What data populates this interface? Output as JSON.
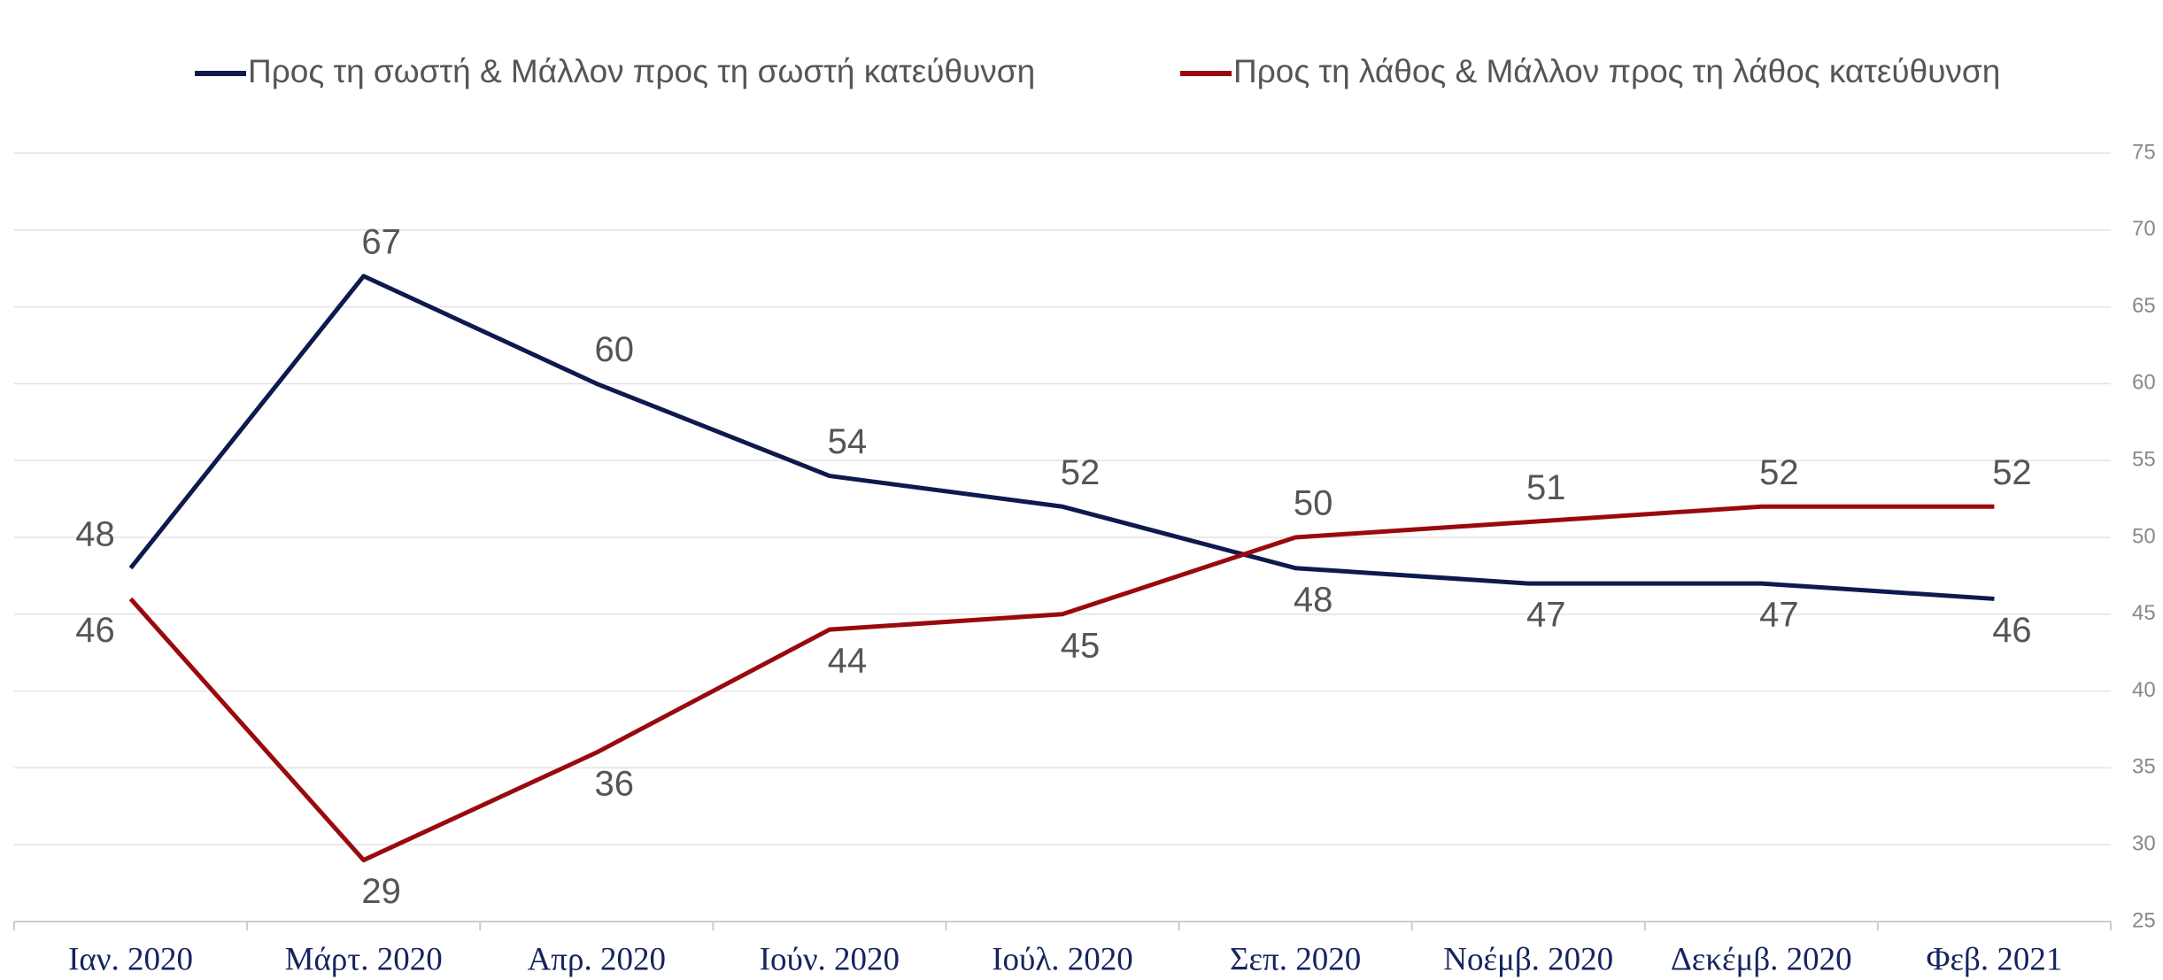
{
  "chart_data": {
    "type": "line",
    "categories": [
      "Ιαν. 2020",
      "Μάρτ. 2020",
      "Απρ. 2020",
      "Ιούν. 2020",
      "Ιούλ. 2020",
      "Σεπ. 2020",
      "Νοέμβ. 2020",
      "Δεκέμβ. 2020",
      "Φεβ. 2021"
    ],
    "series": [
      {
        "name": "Προς τη σωστή & Μάλλον προς τη σωστή κατεύθυνση",
        "color": "#0e1a4e",
        "values": [
          48,
          67,
          60,
          54,
          52,
          48,
          47,
          47,
          46
        ]
      },
      {
        "name": "Προς τη λάθος & Μάλλον προς τη λάθος κατεύθυνση",
        "color": "#990a0c",
        "values": [
          46,
          29,
          36,
          44,
          45,
          50,
          51,
          52,
          52
        ]
      }
    ],
    "ylim": [
      25,
      75
    ],
    "yticks": [
      25,
      30,
      35,
      40,
      45,
      50,
      55,
      60,
      65,
      70,
      75
    ],
    "grid": true,
    "y_axis_side": "right",
    "legend": "top"
  }
}
